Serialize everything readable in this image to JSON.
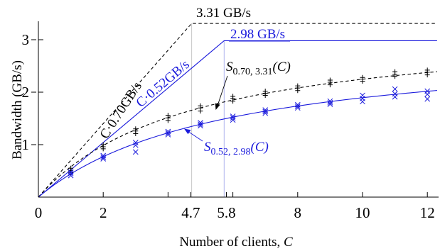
{
  "chart_data": {
    "type": "line",
    "xlabel_text": "Number of clients, ",
    "xlabel_var": "C",
    "ylabel": "Bandwidth (GB/s)",
    "xlim": [
      0,
      12.3
    ],
    "ylim": [
      0,
      3.4
    ],
    "xticks": [
      0,
      2,
      4.7,
      5.8,
      8,
      10,
      12
    ],
    "xticks_minor": [
      4,
      6
    ],
    "yticks": [
      1,
      2,
      3
    ],
    "grid": false,
    "colors": {
      "black": "#000000",
      "blue": "#1a1adc",
      "blue_light": "#aeb2ee",
      "gray_light": "#c8c8c8"
    },
    "series": [
      {
        "name": "black-measured",
        "color": "#000000",
        "marker": "plus",
        "x": [
          1,
          1,
          1,
          2,
          2,
          2,
          3,
          3,
          3,
          4,
          4,
          4,
          5,
          5,
          5,
          6,
          6,
          6,
          7,
          7,
          7,
          8,
          8,
          8,
          9,
          9,
          9,
          10,
          10,
          10,
          11,
          11,
          11,
          12,
          12,
          12
        ],
        "y": [
          0.47,
          0.51,
          0.55,
          0.92,
          0.96,
          1.0,
          1.21,
          1.26,
          1.3,
          1.46,
          1.51,
          1.56,
          1.64,
          1.7,
          1.74,
          1.83,
          1.88,
          1.92,
          1.94,
          1.98,
          2.02,
          2.03,
          2.08,
          2.12,
          2.14,
          2.19,
          2.23,
          2.21,
          2.25,
          2.28,
          2.3,
          2.34,
          2.39,
          2.33,
          2.38,
          2.42
        ]
      },
      {
        "name": "blue-measured",
        "color": "#1a1adc",
        "marker": "x",
        "x": [
          1,
          1,
          1,
          2,
          2,
          2,
          3,
          3,
          3,
          4,
          4,
          4,
          5,
          5,
          5,
          6,
          6,
          6,
          7,
          7,
          7,
          8,
          8,
          8,
          9,
          9,
          9,
          10,
          10,
          10,
          11,
          11,
          11,
          12,
          12,
          12
        ],
        "y": [
          0.41,
          0.45,
          0.48,
          0.73,
          0.76,
          0.79,
          0.86,
          0.99,
          1.04,
          1.19,
          1.22,
          1.25,
          1.36,
          1.39,
          1.42,
          1.47,
          1.51,
          1.54,
          1.6,
          1.63,
          1.66,
          1.7,
          1.73,
          1.76,
          1.77,
          1.8,
          1.83,
          1.82,
          1.88,
          1.94,
          1.91,
          1.97,
          2.06,
          1.87,
          1.96,
          2.02
        ]
      }
    ],
    "models": [
      {
        "kind": "bound",
        "color": "#000000",
        "dash": true,
        "latency": 0.7,
        "peak": 3.31
      },
      {
        "kind": "bound",
        "color": "#1a1adc",
        "dash": false,
        "latency": 0.52,
        "peak": 2.98
      },
      {
        "kind": "curve",
        "color": "#000000",
        "dash": true,
        "latency": 0.7,
        "peak": 3.31
      },
      {
        "kind": "curve",
        "color": "#1a1adc",
        "dash": false,
        "latency": 0.52,
        "peak": 2.98
      }
    ],
    "annotations": {
      "black_peak": "3.31 GB/s",
      "blue_peak": "2.98 GB/s",
      "black_rate": "C·0.70GB/s",
      "blue_rate": "C·0.52GB/s",
      "s_black_main": "S",
      "s_black_sub": "0.70, 3.31",
      "s_black_arg": "(C)",
      "s_blue_main": "S",
      "s_blue_sub": "0.52, 2.98",
      "s_blue_arg": "(C)"
    }
  }
}
